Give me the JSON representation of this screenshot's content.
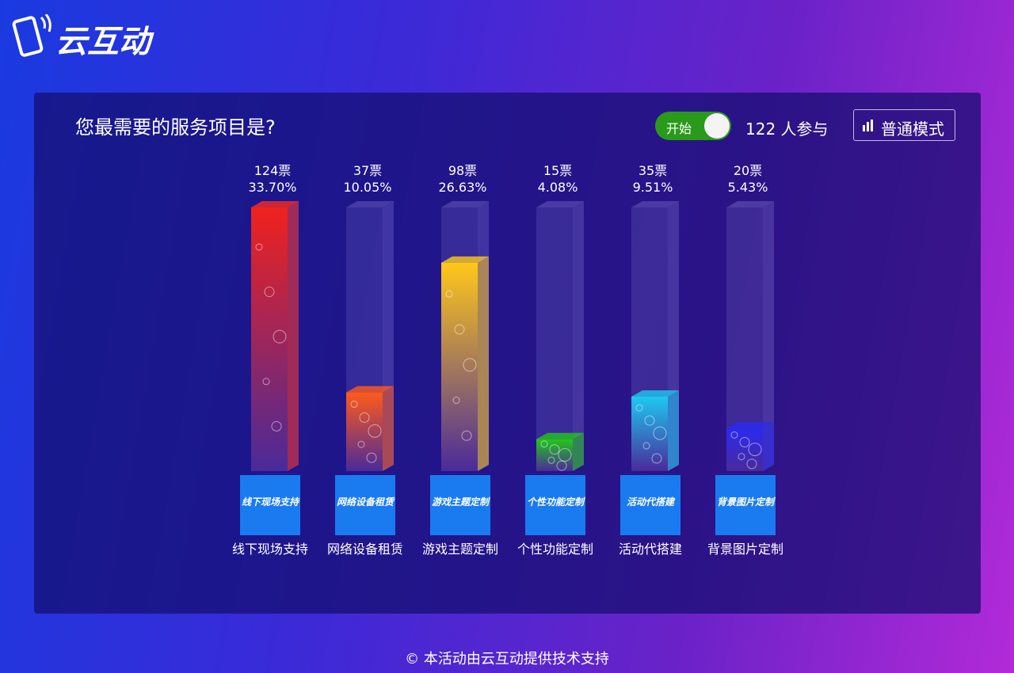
{
  "header": {
    "logo": "云互动"
  },
  "panel": {
    "question": "您最需要的服务项目是?",
    "toggle": "开始",
    "participants": "122 人参与",
    "mode_button": "普通模式"
  },
  "chart_data": {
    "type": "bar3d",
    "categories": [
      "线下现场支持",
      "网络设备租赁",
      "游戏主题定制",
      "个性功能定制",
      "活动代搭建",
      "背景图片定制"
    ],
    "values": [
      124,
      37,
      98,
      15,
      35,
      20
    ],
    "value_labels": [
      "124票",
      "37票",
      "98票",
      "15票",
      "35票",
      "20票"
    ],
    "percents": [
      33.7,
      10.05,
      26.63,
      4.08,
      9.51,
      5.43
    ],
    "percent_labels": [
      "33.70%",
      "10.05%",
      "26.63%",
      "4.08%",
      "9.51%",
      "5.43%"
    ],
    "colors": [
      "#f0221c",
      "#ff5a1a",
      "#ffc81a",
      "#22c81a",
      "#1ec8f0",
      "#2a2af0"
    ]
  },
  "footer": "© 本活动由云互动提供技术支持"
}
